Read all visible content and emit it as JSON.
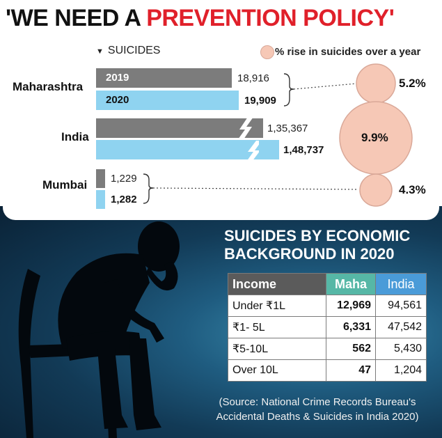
{
  "headline": {
    "part1": "'WE NEED A ",
    "part2": "PREVENTION POLICY'"
  },
  "legend": {
    "suicides": "SUICIDES",
    "rise": "% rise in suicides over a year"
  },
  "chart_data": [
    {
      "type": "bar",
      "title": "SUICIDES",
      "categories": [
        "Maharashtra",
        "India",
        "Mumbai"
      ],
      "series": [
        {
          "name": "2019",
          "values": [
            18916,
            135367,
            1229
          ],
          "labels": [
            "18,916",
            "1,35,367",
            "1,229"
          ]
        },
        {
          "name": "2020",
          "values": [
            19909,
            148737,
            1282
          ],
          "labels": [
            "19,909",
            "1,48,737",
            "1,282"
          ]
        }
      ],
      "pct_rise": {
        "legend": "% rise in suicides over a year",
        "values": [
          5.2,
          9.9,
          4.3
        ],
        "labels": [
          "5.2%",
          "9.9%",
          "4.3%"
        ]
      },
      "notes": "India bars shown with a break symbol"
    },
    {
      "type": "table",
      "title": "SUICIDES BY ECONOMIC BACKGROUND IN 2020",
      "columns": [
        "Income",
        "Maha",
        "India"
      ],
      "rows": [
        [
          "Under ₹1L",
          "12,969",
          "94,561"
        ],
        [
          "₹1- 5L",
          "6,331",
          "47,542"
        ],
        [
          "₹5-10L",
          "562",
          "5,430"
        ],
        [
          "Over 10L",
          "47",
          "1,204"
        ]
      ]
    }
  ],
  "source": "(Source: National Crime Records Bureau's Accidental Deaths & Suicides in India 2020)",
  "colors": {
    "bar_2019": "#7c7c7c",
    "bar_2020": "#8fd3f0",
    "circle": "#f6c8b6",
    "headline_red": "#e0202a"
  }
}
